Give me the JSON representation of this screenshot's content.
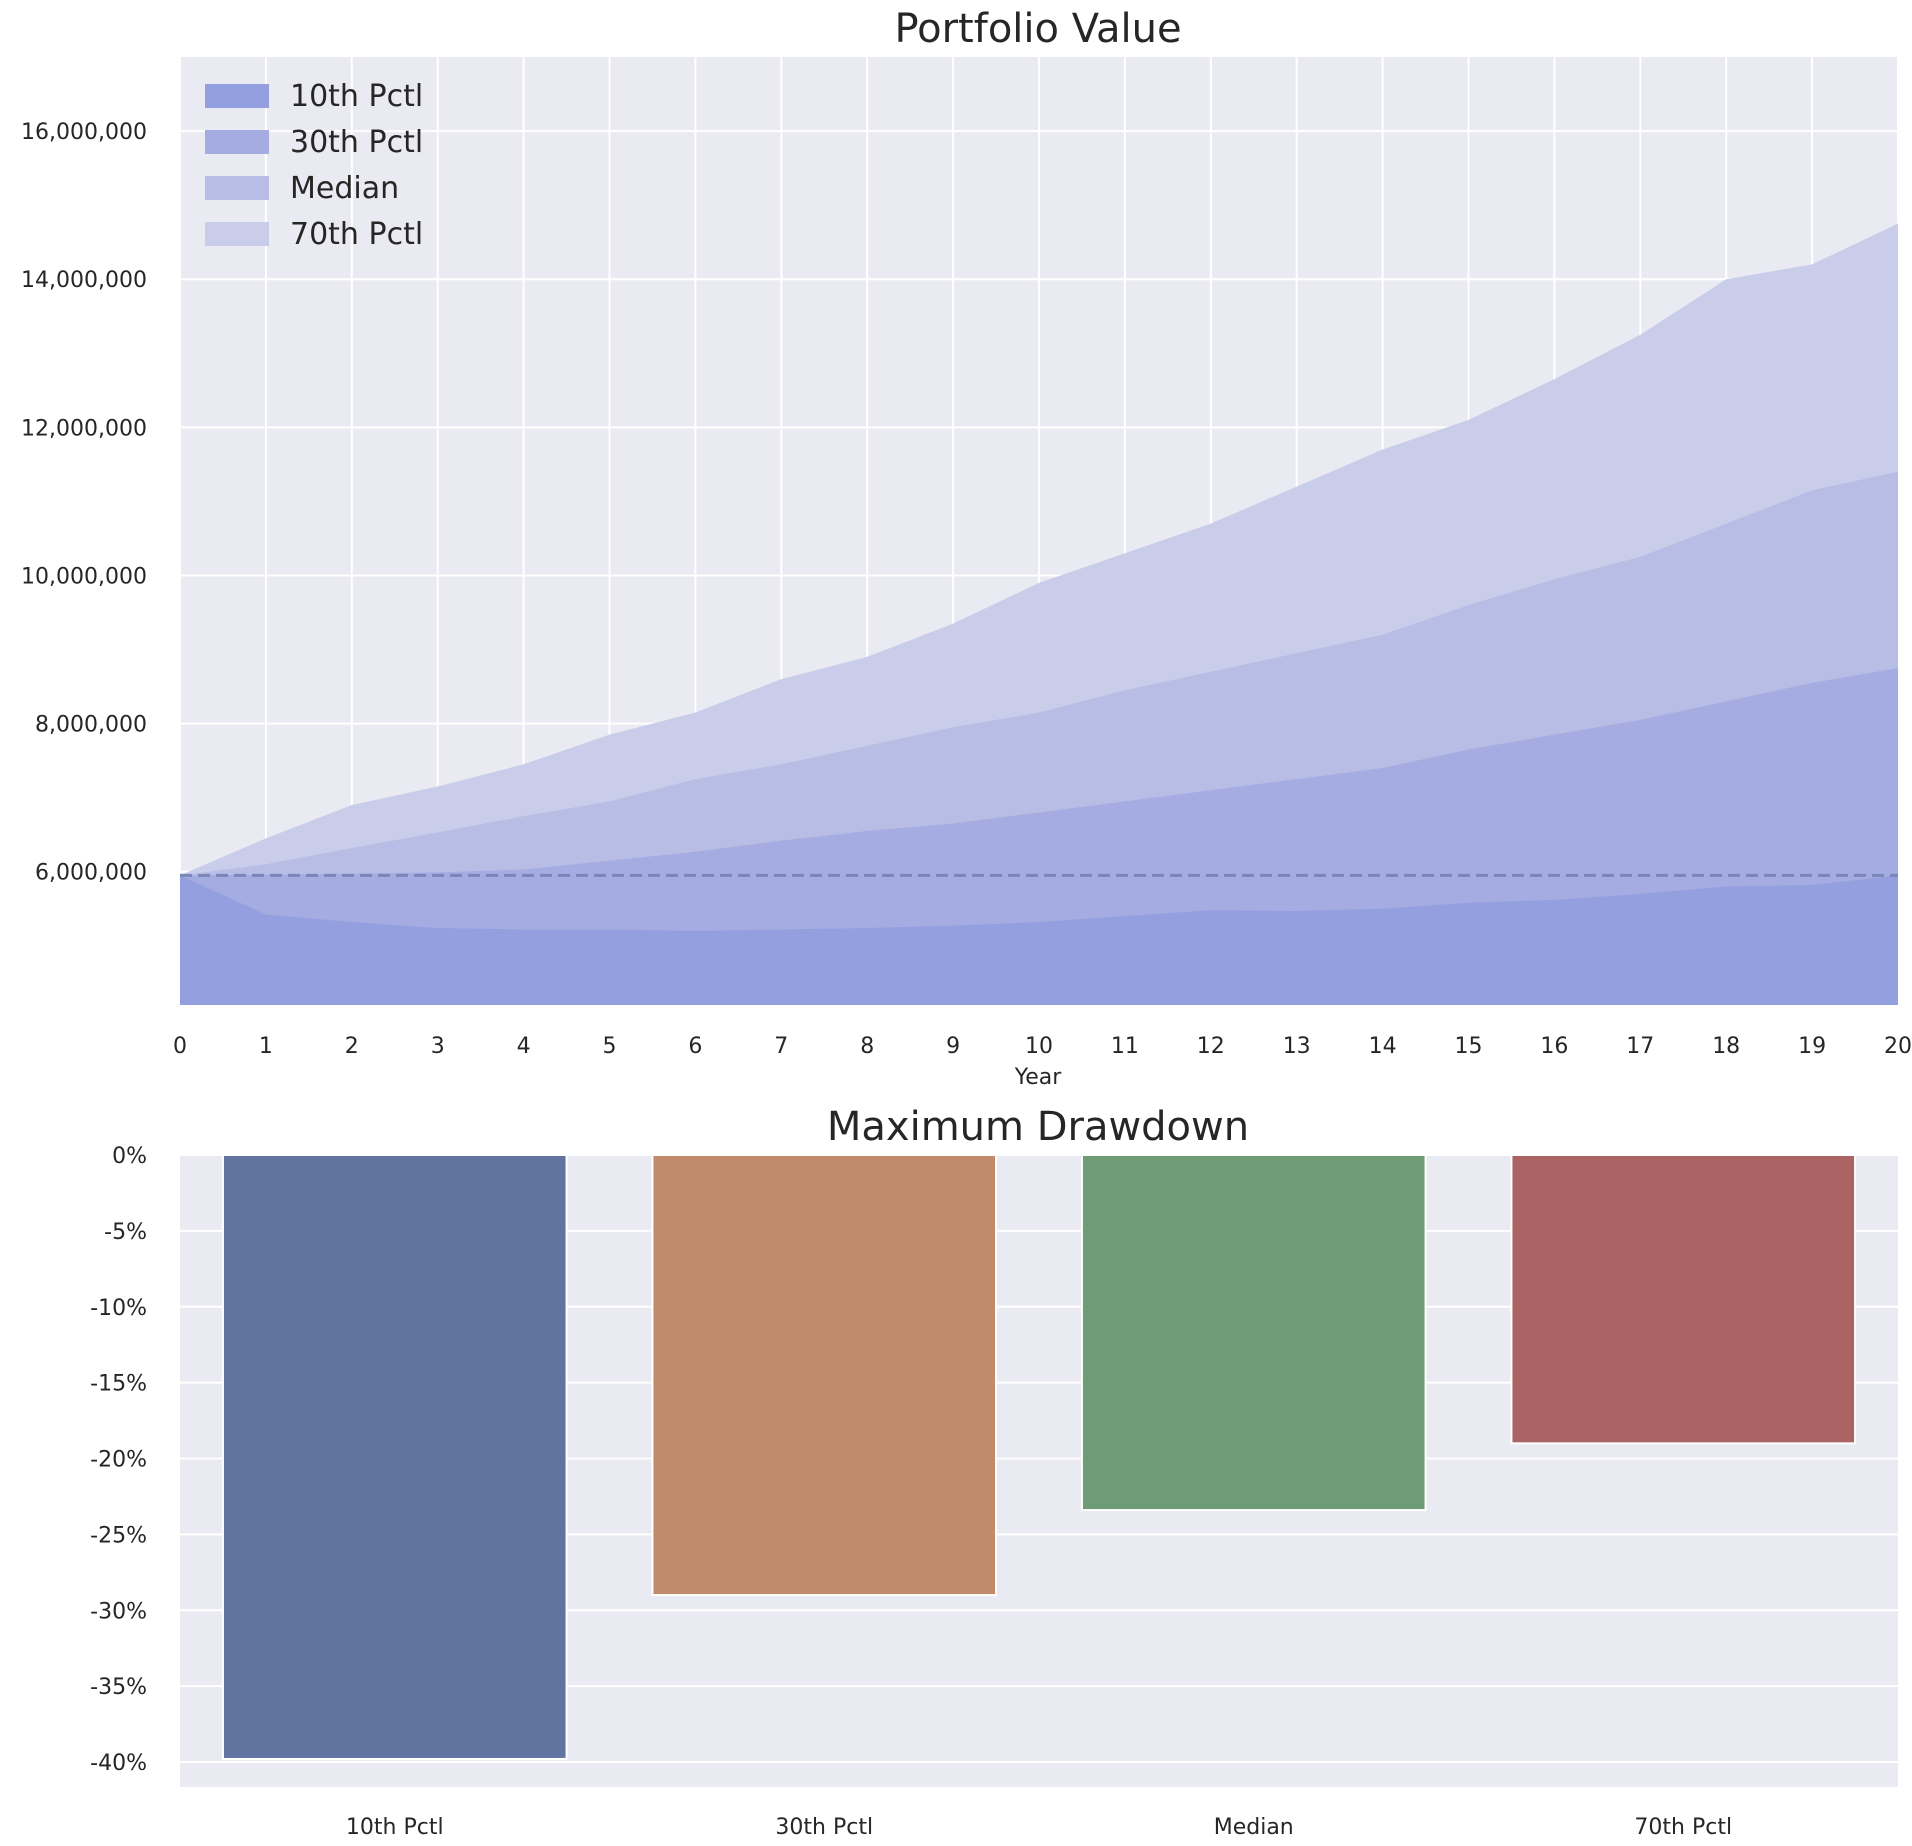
{
  "chart_data": [
    {
      "type": "area",
      "title": "Portfolio Value",
      "xlabel": "Year",
      "ylabel": "",
      "xlim": [
        0,
        20
      ],
      "ylim": [
        4200000,
        17000000
      ],
      "x_ticks": [
        "0",
        "1",
        "2",
        "3",
        "4",
        "5",
        "6",
        "7",
        "8",
        "9",
        "10",
        "11",
        "12",
        "13",
        "14",
        "15",
        "16",
        "17",
        "18",
        "19",
        "20"
      ],
      "y_ticks": [
        {
          "value": 6000000,
          "label": "6,000,000"
        },
        {
          "value": 8000000,
          "label": "8,000,000"
        },
        {
          "value": 10000000,
          "label": "10,000,000"
        },
        {
          "value": 12000000,
          "label": "12,000,000"
        },
        {
          "value": 14000000,
          "label": "14,000,000"
        },
        {
          "value": 16000000,
          "label": "16,000,000"
        }
      ],
      "baseline": 5950000,
      "grid": true,
      "legend_position": "top-left",
      "x": [
        0,
        1,
        2,
        3,
        4,
        5,
        6,
        7,
        8,
        9,
        10,
        11,
        12,
        13,
        14,
        15,
        16,
        17,
        18,
        19,
        20
      ],
      "series": [
        {
          "name": "70th Pctl",
          "color": "#cacdea",
          "values": [
            5950000,
            6450000,
            6900000,
            7150000,
            7450000,
            7850000,
            8150000,
            8600000,
            8900000,
            9350000,
            9900000,
            10300000,
            10700000,
            11200000,
            11700000,
            12100000,
            12650000,
            13250000,
            14000000,
            14200000,
            14750000
          ]
        },
        {
          "name": "Median",
          "color": "#b8bde6",
          "values": [
            5950000,
            6100000,
            6320000,
            6530000,
            6750000,
            6950000,
            7250000,
            7450000,
            7700000,
            7950000,
            8150000,
            8450000,
            8700000,
            8950000,
            9200000,
            9600000,
            9950000,
            10250000,
            10700000,
            11150000,
            11400000
          ]
        },
        {
          "name": "30th Pctl",
          "color": "#a5ace2",
          "values": [
            5950000,
            5960000,
            5970000,
            5990000,
            6030000,
            6150000,
            6270000,
            6420000,
            6550000,
            6650000,
            6800000,
            6950000,
            7100000,
            7250000,
            7400000,
            7650000,
            7850000,
            8050000,
            8300000,
            8550000,
            8750000
          ]
        },
        {
          "name": "10th Pctl",
          "color": "#939fde",
          "values": [
            5950000,
            5420000,
            5320000,
            5240000,
            5220000,
            5220000,
            5200000,
            5220000,
            5240000,
            5270000,
            5320000,
            5400000,
            5480000,
            5470000,
            5500000,
            5580000,
            5620000,
            5700000,
            5800000,
            5820000,
            5950000
          ]
        }
      ]
    },
    {
      "type": "bar",
      "title": "Maximum Drawdown",
      "categories": [
        "10th Pctl",
        "30th Pctl",
        "Median",
        "70th Pctl"
      ],
      "values": [
        -39.8,
        -29.0,
        -23.4,
        -19.0
      ],
      "colors": [
        "#6174a0",
        "#c18b6b",
        "#6e9c74",
        "#aa6262"
      ],
      "ylim": [
        -41.5,
        0
      ],
      "y_ticks": [
        {
          "value": 0,
          "label": "0%"
        },
        {
          "value": -5,
          "label": "-5%"
        },
        {
          "value": -10,
          "label": "-10%"
        },
        {
          "value": -15,
          "label": "-15%"
        },
        {
          "value": -20,
          "label": "-20%"
        },
        {
          "value": -25,
          "label": "-25%"
        },
        {
          "value": -30,
          "label": "-30%"
        },
        {
          "value": -35,
          "label": "-35%"
        },
        {
          "value": -40,
          "label": "-40%"
        }
      ],
      "grid": true
    }
  ]
}
